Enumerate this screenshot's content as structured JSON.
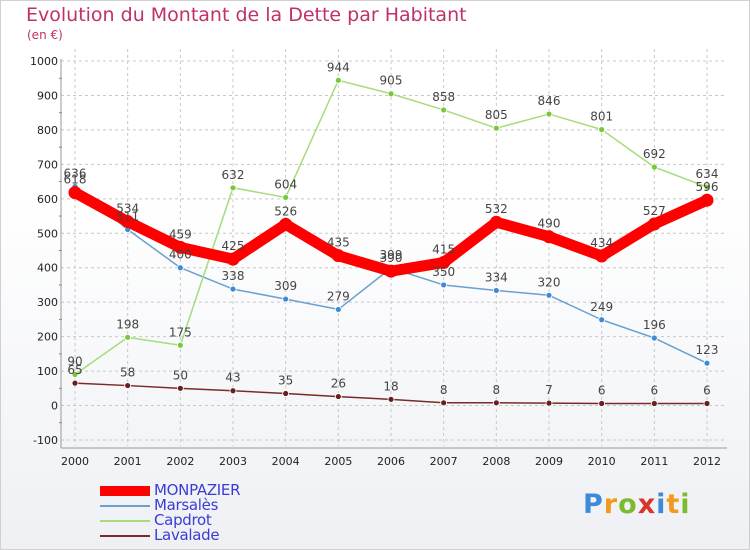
{
  "title": "Evolution du Montant de la Dette par Habitant",
  "subtitle": "(en €)",
  "colors": {
    "title": "#c0306a",
    "legend_text": "#3b3bd6",
    "grid": "#c8c8c8",
    "axis_tick_text": "#222222",
    "value_text": "#444444"
  },
  "logo": {
    "letters": [
      "P",
      "r",
      "o",
      "x",
      "i",
      "t",
      "i"
    ]
  },
  "chart_data": {
    "type": "line",
    "x": [
      "2000",
      "2001",
      "2002",
      "2003",
      "2004",
      "2005",
      "2006",
      "2007",
      "2008",
      "2009",
      "2010",
      "2011",
      "2012"
    ],
    "ylim": [
      -100,
      1000
    ],
    "yticks": [
      "-100",
      "0",
      "100",
      "200",
      "300",
      "400",
      "500",
      "600",
      "700",
      "800",
      "900",
      "1000"
    ],
    "grid": true,
    "legend_position": "bottom-left",
    "series": [
      {
        "name": "MONPAZIER",
        "color": "#ff0000",
        "marker": "#ff0000",
        "width": "thick",
        "values": [
          618,
          534,
          459,
          425,
          526,
          435,
          390,
          415,
          532,
          490,
          434,
          527,
          596
        ],
        "labels": [
          "618",
          "534",
          "459",
          "425",
          "526",
          "435",
          "390",
          "415",
          "532",
          "490",
          "434",
          "527",
          "596"
        ]
      },
      {
        "name": "Marsalès",
        "color": "#6aa0cf",
        "marker": "#3f8ad8",
        "width": "thin",
        "values": [
          636,
          511,
          400,
          338,
          309,
          279,
          399,
          350,
          334,
          320,
          249,
          196,
          123
        ],
        "labels": [
          "636",
          "511",
          "400",
          "338",
          "309",
          "279",
          "399",
          "350",
          "334",
          "320",
          "249",
          "196",
          "123"
        ]
      },
      {
        "name": "Capdrot",
        "color": "#a6dc7c",
        "marker": "#78c83a",
        "width": "thin",
        "values": [
          90,
          198,
          175,
          632,
          604,
          944,
          905,
          858,
          805,
          846,
          801,
          692,
          634
        ],
        "labels": [
          "90",
          "198",
          "175",
          "632",
          "604",
          "944",
          "905",
          "858",
          "805",
          "846",
          "801",
          "692",
          "634"
        ]
      },
      {
        "name": "Lavalade",
        "color": "#7a2a2a",
        "marker": "#6a1e1e",
        "width": "thin",
        "values": [
          65,
          58,
          50,
          43,
          35,
          26,
          18,
          8,
          8,
          7,
          6,
          6,
          6
        ],
        "labels": [
          "65",
          "58",
          "50",
          "43",
          "35",
          "26",
          "18",
          "8",
          "8",
          "7",
          "6",
          "6",
          "6"
        ]
      }
    ]
  }
}
